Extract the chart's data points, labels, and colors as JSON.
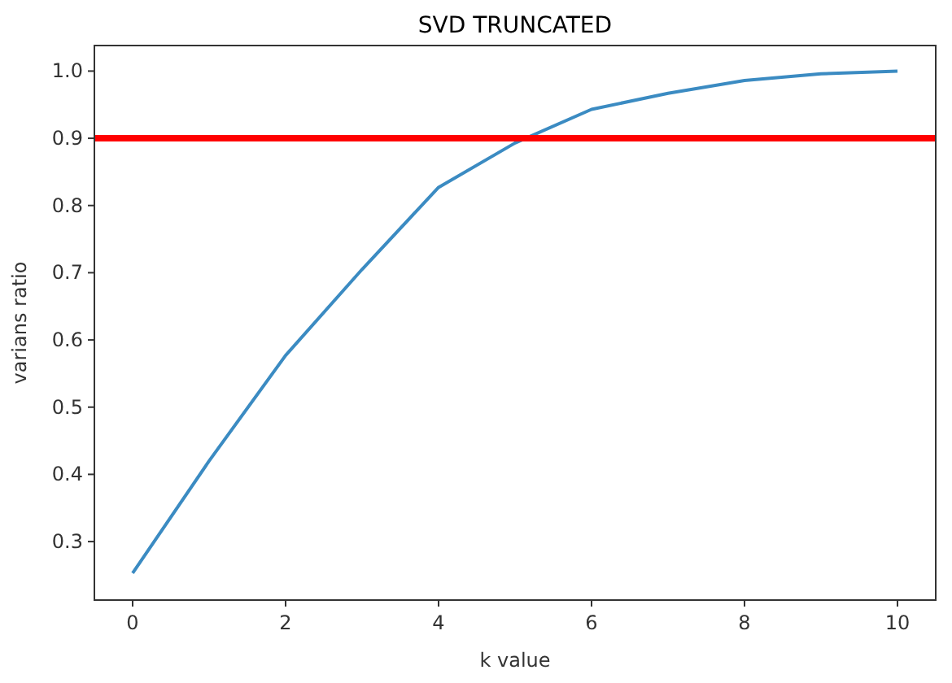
{
  "chart_data": {
    "type": "line",
    "title": "SVD TRUNCATED",
    "xlabel": "k value",
    "ylabel": "varians ratio",
    "x": [
      0,
      1,
      2,
      3,
      4,
      5,
      6,
      7,
      8,
      9,
      10
    ],
    "series": [
      {
        "color": "#3b8bc2",
        "values": [
          0.253,
          0.42,
          0.577,
          0.705,
          0.827,
          0.893,
          0.943,
          0.967,
          0.986,
          0.996,
          1.0
        ]
      }
    ],
    "xlim": [
      -0.5,
      10.5
    ],
    "xticks": [
      0,
      2,
      4,
      6,
      8,
      10
    ],
    "ylim": [
      0.213,
      1.038
    ],
    "yticks": [
      {
        "value": 0.3,
        "label": "0.3"
      },
      {
        "value": 0.4,
        "label": "0.4"
      },
      {
        "value": 0.5,
        "label": "0.5"
      },
      {
        "value": 0.6,
        "label": "0.6"
      },
      {
        "value": 0.7,
        "label": "0.7"
      },
      {
        "value": 0.8,
        "label": "0.8"
      },
      {
        "value": 0.9,
        "label": "0.9"
      },
      {
        "value": 1.0,
        "label": "1.0"
      }
    ],
    "ref_lines": [
      {
        "axis": "y",
        "value": 0.9,
        "color": "#ff0000"
      }
    ],
    "grid": false
  }
}
